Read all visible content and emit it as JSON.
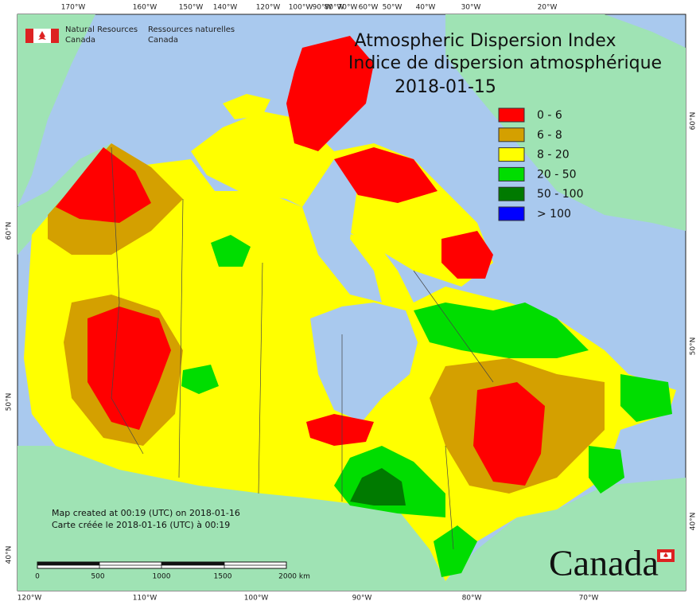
{
  "header": {
    "agency_en_1": "Natural Resources",
    "agency_en_2": "Canada",
    "agency_fr_1": "Ressources naturelles",
    "agency_fr_2": "Canada"
  },
  "title": {
    "line_en": "Atmospheric Dispersion Index",
    "line_fr": "Indice de dispersion atmosphérique",
    "date": "2018-01-15"
  },
  "legend": [
    {
      "label": "0 - 6",
      "color": "#ff0000"
    },
    {
      "label": "6 - 8",
      "color": "#d4a000"
    },
    {
      "label": "8 - 20",
      "color": "#ffff00"
    },
    {
      "label": "20 - 50",
      "color": "#00dd00"
    },
    {
      "label": "50 - 100",
      "color": "#007a00"
    },
    {
      "label": "> 100",
      "color": "#0000ff"
    }
  ],
  "graticule": {
    "top": [
      "170°W",
      "160°W",
      "150°W",
      "140°W",
      "120°W",
      "100°W",
      "90°W",
      "80°W",
      "70°W",
      "60°W",
      "50°W",
      "40°W",
      "30°W",
      "20°W"
    ],
    "bottom": [
      "120°W",
      "110°W",
      "100°W",
      "90°W",
      "80°W",
      "70°W"
    ],
    "left": [
      "60°N",
      "50°N",
      "40°N"
    ],
    "right": [
      "60°N",
      "50°N",
      "40°N"
    ]
  },
  "credits": [
    "Map created at 00:19 (UTC) on 2018-01-16",
    "Carte créée le 2018-01-16 (UTC) à 00:19"
  ],
  "scale": [
    "0",
    "500",
    "1000",
    "1500",
    "2000  km"
  ],
  "wordmark": "Canada"
}
